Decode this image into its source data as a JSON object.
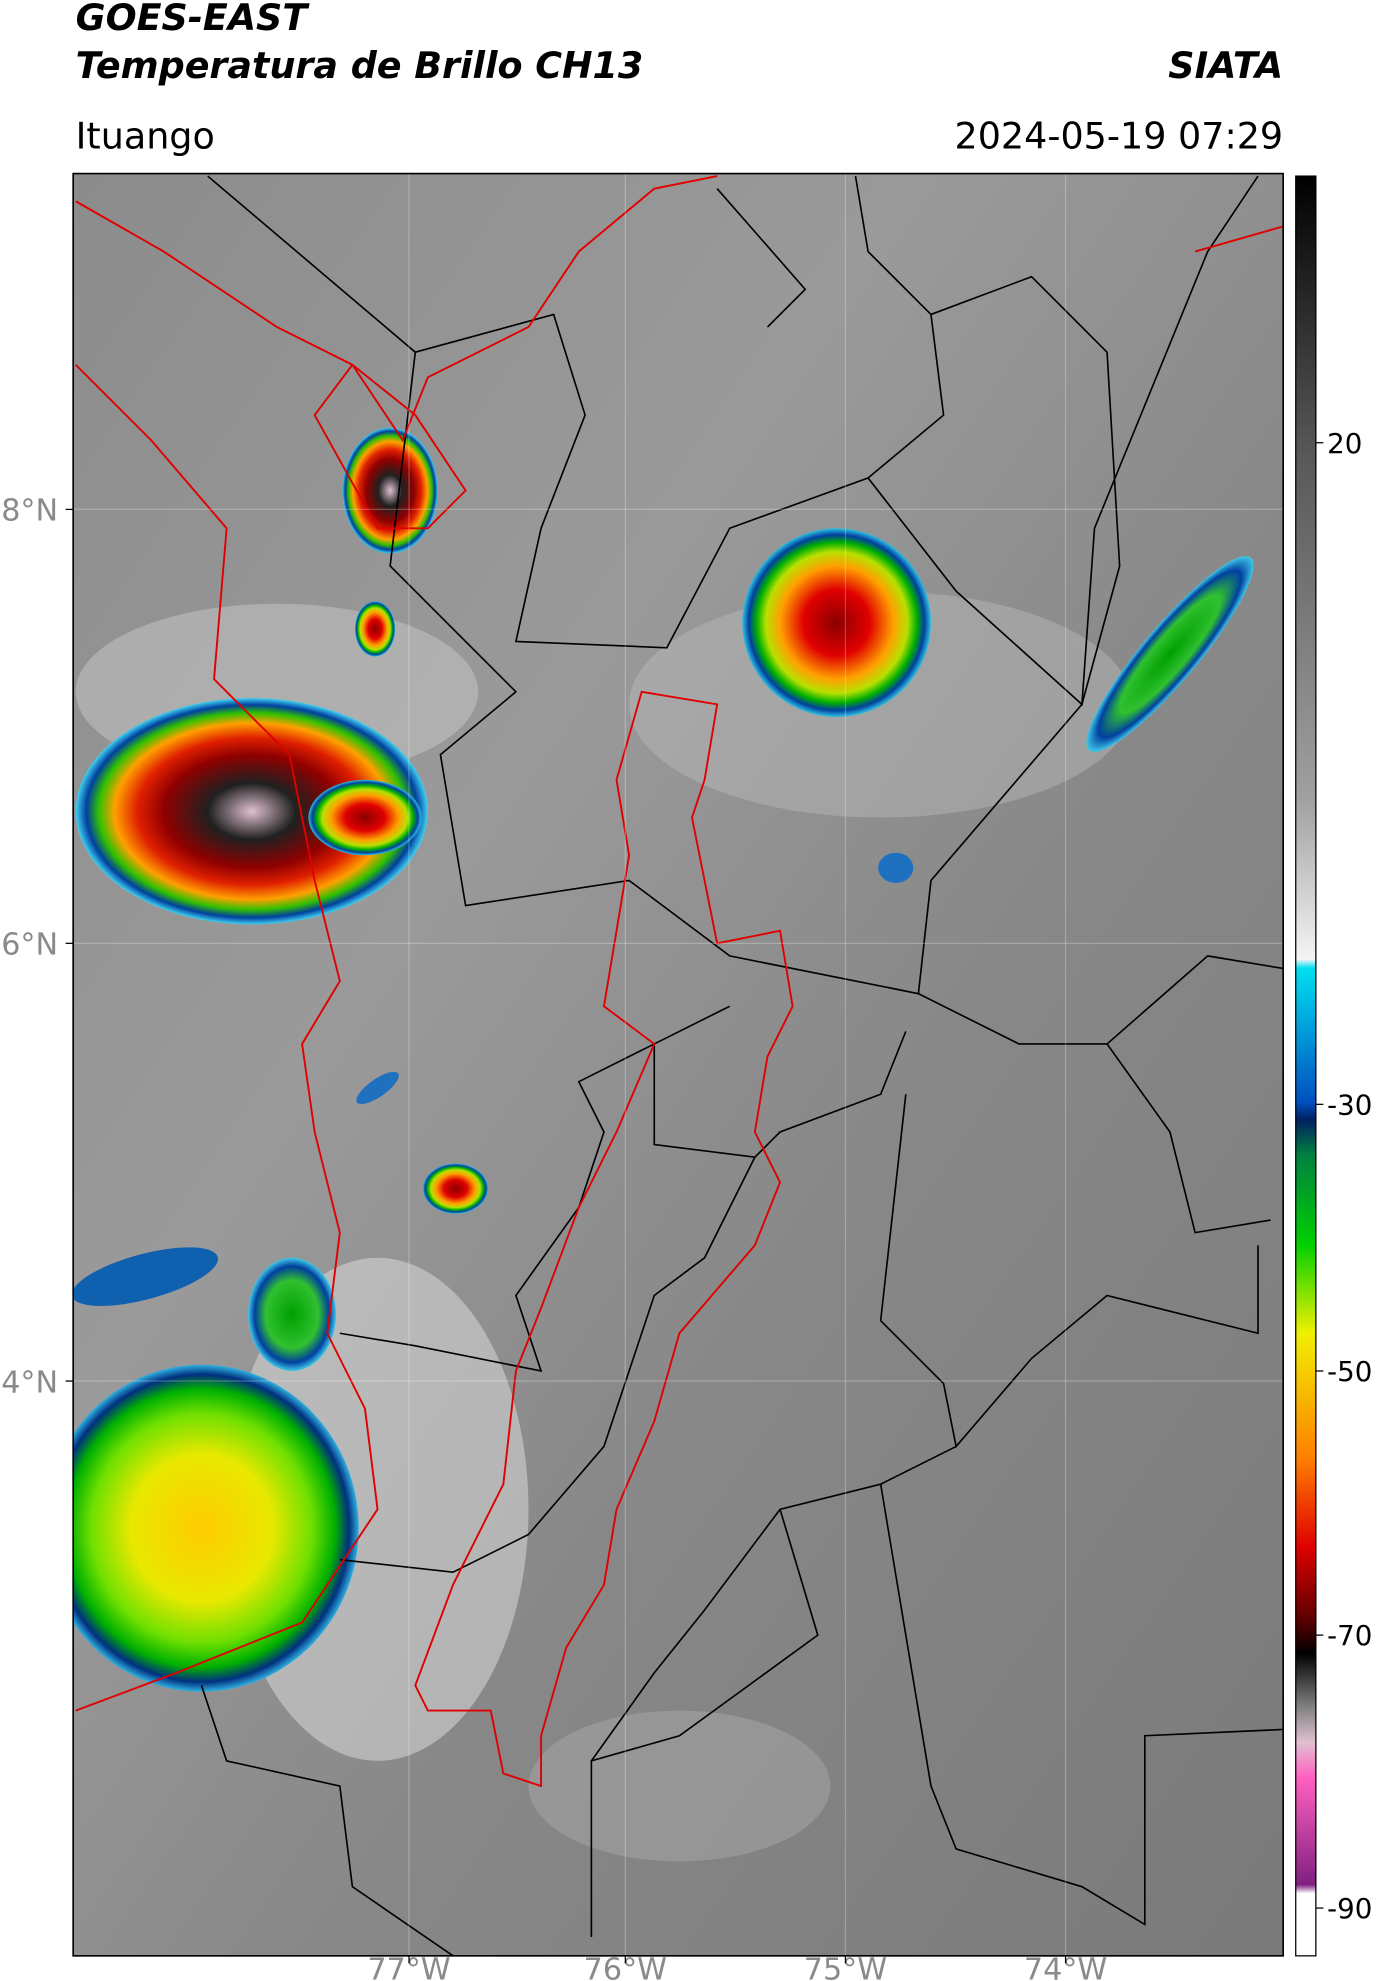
{
  "header": {
    "title": "GOES-EAST",
    "subtitle": "Temperatura de Brillo CH13",
    "brand": "SIATA",
    "location": "Ituango",
    "datetime": "2024-05-19 07:29"
  },
  "map": {
    "lat_ticks": [
      "8°N",
      "6°N",
      "4°N"
    ],
    "lon_ticks": [
      "77°W",
      "76°W",
      "75°W",
      "74°W"
    ]
  },
  "colorbar": {
    "ticks": [
      "20",
      "-30",
      "-50",
      "-70",
      "-90"
    ]
  }
}
